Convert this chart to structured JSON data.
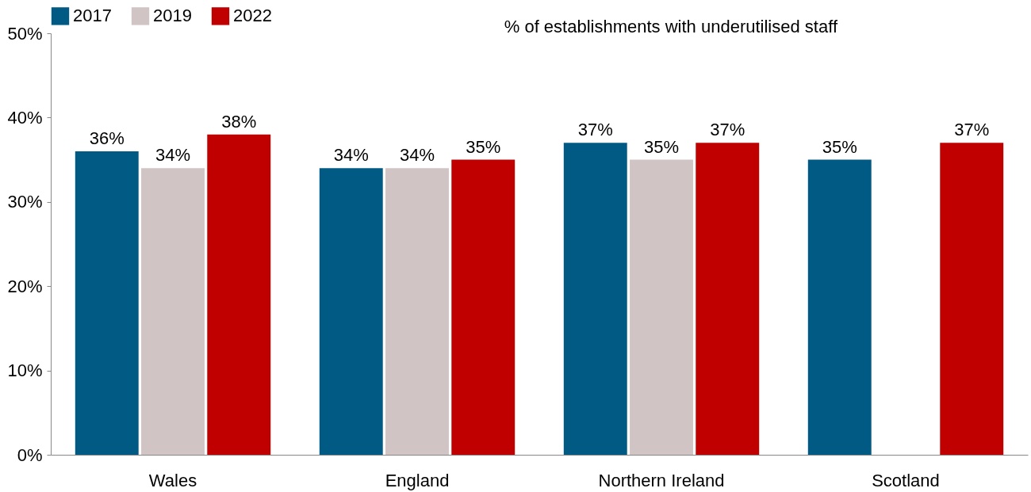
{
  "chart_data": {
    "type": "bar",
    "title": "% of establishments with underutilised staff",
    "categories": [
      "Wales",
      "England",
      "Northern Ireland",
      "Scotland"
    ],
    "series": [
      {
        "name": "2017",
        "color": "#005a84",
        "values": [
          36,
          34,
          37,
          35
        ],
        "value_labels": [
          "36%",
          "34%",
          "37%",
          "35%"
        ]
      },
      {
        "name": "2019",
        "color": "#d0c4c4",
        "values": [
          34,
          34,
          35,
          null
        ],
        "value_labels": [
          "34%",
          "34%",
          "35%",
          null
        ]
      },
      {
        "name": "2022",
        "color": "#c00000",
        "values": [
          38,
          35,
          37,
          37
        ],
        "value_labels": [
          "38%",
          "35%",
          "37%",
          "37%"
        ]
      }
    ],
    "ylim": [
      0,
      50
    ],
    "yticks": [
      {
        "value": 0,
        "label": "0%"
      },
      {
        "value": 10,
        "label": "10%"
      },
      {
        "value": 20,
        "label": "20%"
      },
      {
        "value": 30,
        "label": "30%"
      },
      {
        "value": 40,
        "label": "40%"
      },
      {
        "value": 50,
        "label": "50%"
      }
    ],
    "grid": false,
    "legend": "top left"
  }
}
